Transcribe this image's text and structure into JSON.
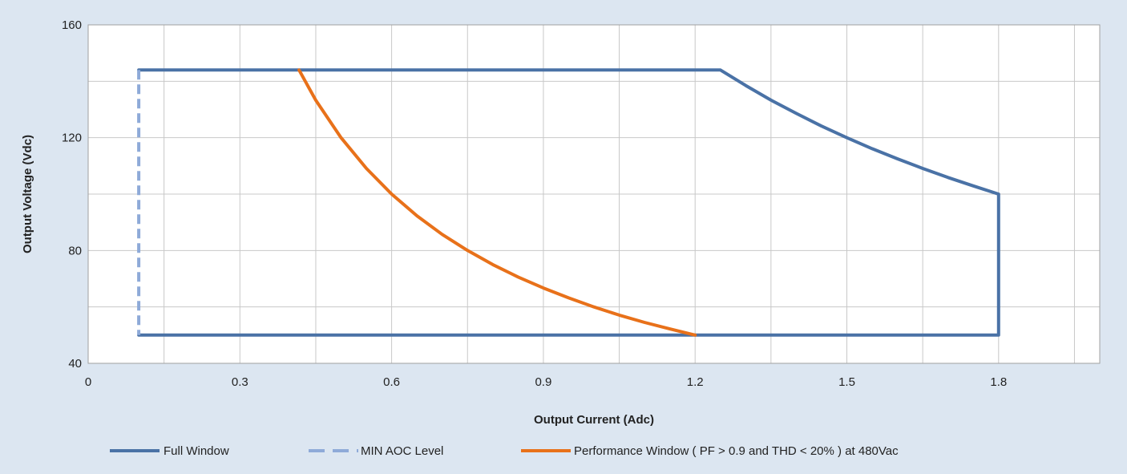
{
  "chart_data": {
    "type": "line",
    "title": "",
    "xlabel": "Output Current (Adc)",
    "ylabel": "Output Voltage (Vdc)",
    "xlim": [
      0,
      2.0
    ],
    "ylim": [
      40,
      160
    ],
    "x_ticks": [
      0,
      0.3,
      0.6,
      0.9,
      1.2,
      1.5,
      1.8
    ],
    "x_tick_labels": [
      "0",
      "0.3",
      "0.6",
      "0.9",
      "1.2",
      "1.5",
      "1.8"
    ],
    "y_ticks": [
      40,
      80,
      120,
      160
    ],
    "y_tick_labels": [
      "40",
      "80",
      "120",
      "160"
    ],
    "x_minor_grid": [
      0.15,
      0.45,
      0.75,
      1.05,
      1.35,
      1.65,
      1.95
    ],
    "y_minor_grid": [
      60,
      100,
      140
    ],
    "grid": true,
    "legend_position": "bottom",
    "series": [
      {
        "name": "Full Window",
        "color": "#4a72a6",
        "style": "solid",
        "x": [
          0.1,
          1.25,
          1.3,
          1.35,
          1.4,
          1.45,
          1.5,
          1.55,
          1.6,
          1.65,
          1.7,
          1.75,
          1.8,
          1.8,
          0.1
        ],
        "y": [
          144,
          144,
          138.5,
          133.3,
          128.6,
          124.1,
          120,
          116.1,
          112.5,
          109.1,
          105.9,
          102.9,
          100,
          50,
          50
        ]
      },
      {
        "name": "MIN AOC Level",
        "color": "#8eaad8",
        "style": "dashed",
        "x": [
          0.1,
          0.1
        ],
        "y": [
          144,
          50
        ]
      },
      {
        "name": "Performance Window ( PF > 0.9 and THD < 20% ) at 480Vac",
        "color": "#e8711a",
        "style": "solid",
        "x": [
          0.417,
          0.45,
          0.5,
          0.55,
          0.6,
          0.65,
          0.7,
          0.75,
          0.8,
          0.85,
          0.9,
          0.95,
          1.0,
          1.05,
          1.1,
          1.15,
          1.2
        ],
        "y": [
          144,
          133.3,
          120,
          109.1,
          100,
          92.3,
          85.7,
          80,
          75,
          70.6,
          66.7,
          63.2,
          60,
          57.1,
          54.5,
          52.2,
          50
        ]
      }
    ]
  }
}
